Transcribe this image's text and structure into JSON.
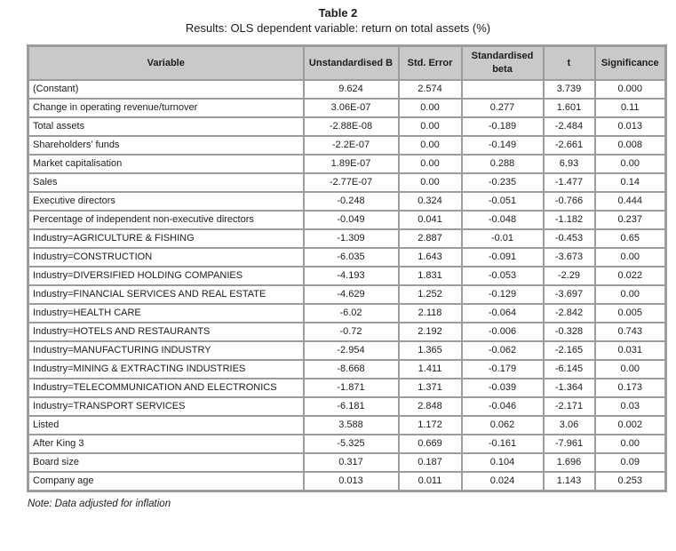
{
  "title": "Table 2",
  "subtitle": "Results: OLS dependent variable: return on total assets (%)",
  "note": "Note: Data adjusted for inflation",
  "table": {
    "columns": [
      "Variable",
      "Unstandardised B",
      "Std. Error",
      "Standardised beta",
      "t",
      "Significance"
    ],
    "rows": [
      [
        "(Constant)",
        "9.624",
        "2.574",
        "",
        "3.739",
        "0.000"
      ],
      [
        "Change in operating revenue/turnover",
        "3.06E-07",
        "0.00",
        "0.277",
        "1.601",
        "0.11"
      ],
      [
        "Total assets",
        "-2.88E-08",
        "0.00",
        "-0.189",
        "-2.484",
        "0.013"
      ],
      [
        "Shareholders’ funds",
        "-2.2E-07",
        "0.00",
        "-0.149",
        "-2.661",
        "0.008"
      ],
      [
        "Market capitalisation",
        "1.89E-07",
        "0.00",
        "0.288",
        "6.93",
        "0.00"
      ],
      [
        "Sales",
        "-2.77E-07",
        "0.00",
        "-0.235",
        "-1.477",
        "0.14"
      ],
      [
        "Executive directors",
        "-0.248",
        "0.324",
        "-0.051",
        "-0.766",
        "0.444"
      ],
      [
        "Percentage of independent non-executive directors",
        "-0.049",
        "0.041",
        "-0.048",
        "-1.182",
        "0.237"
      ],
      [
        "Industry=AGRICULTURE & FISHING",
        "-1.309",
        "2.887",
        "-0.01",
        "-0.453",
        "0.65"
      ],
      [
        "Industry=CONSTRUCTION",
        "-6.035",
        "1.643",
        "-0.091",
        "-3.673",
        "0.00"
      ],
      [
        "Industry=DIVERSIFIED HOLDING COMPANIES",
        "-4.193",
        "1.831",
        "-0.053",
        "-2.29",
        "0.022"
      ],
      [
        "Industry=FINANCIAL SERVICES AND REAL ESTATE",
        "-4.629",
        "1.252",
        "-0.129",
        "-3.697",
        "0.00"
      ],
      [
        "Industry=HEALTH CARE",
        "-6.02",
        "2.118",
        "-0.064",
        "-2.842",
        "0.005"
      ],
      [
        "Industry=HOTELS AND RESTAURANTS",
        "-0.72",
        "2.192",
        "-0.006",
        "-0.328",
        "0.743"
      ],
      [
        "Industry=MANUFACTURING INDUSTRY",
        "-2.954",
        "1.365",
        "-0.062",
        "-2.165",
        "0.031"
      ],
      [
        "Industry=MINING & EXTRACTING INDUSTRIES",
        "-8.668",
        "1.411",
        "-0.179",
        "-6.145",
        "0.00"
      ],
      [
        "Industry=TELECOMMUNICATION AND ELECTRONICS",
        "-1.871",
        "1.371",
        "-0.039",
        "-1.364",
        "0.173"
      ],
      [
        "Industry=TRANSPORT SERVICES",
        "-6.181",
        "2.848",
        "-0.046",
        "-2.171",
        "0.03"
      ],
      [
        "Listed",
        "3.588",
        "1.172",
        "0.062",
        "3.06",
        "0.002"
      ],
      [
        "After King 3",
        "-5.325",
        "0.669",
        "-0.161",
        "-7.961",
        "0.00"
      ],
      [
        "Board size",
        "0.317",
        "0.187",
        "0.104",
        "1.696",
        "0.09"
      ],
      [
        "Company age",
        "0.013",
        "0.011",
        "0.024",
        "1.143",
        "0.253"
      ]
    ]
  },
  "colors": {
    "header_bg": "#c9c9c9",
    "border": "#9c9c9c",
    "text": "#1c1c1c",
    "page_bg": "#ffffff"
  }
}
